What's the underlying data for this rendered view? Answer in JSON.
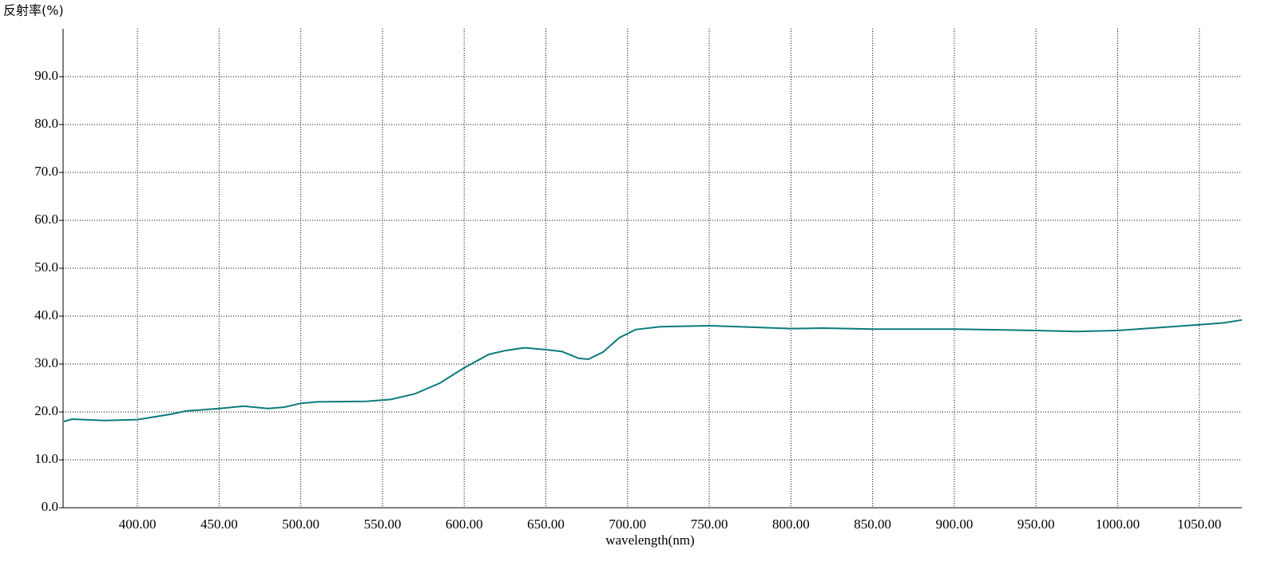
{
  "chart_data": {
    "type": "line",
    "y_label": "反射率(%)",
    "x_label": "wavelength(nm)",
    "xlim": [
      354.5,
      1076
    ],
    "ylim": [
      0,
      100
    ],
    "xticks": [
      {
        "value": 400,
        "label": "400.00"
      },
      {
        "value": 450,
        "label": "450.00"
      },
      {
        "value": 500,
        "label": "500.00"
      },
      {
        "value": 550,
        "label": "550.00"
      },
      {
        "value": 600,
        "label": "600.00"
      },
      {
        "value": 650,
        "label": "650.00"
      },
      {
        "value": 700,
        "label": "700.00"
      },
      {
        "value": 750,
        "label": "750.00"
      },
      {
        "value": 800,
        "label": "800.00"
      },
      {
        "value": 850,
        "label": "850.00"
      },
      {
        "value": 900,
        "label": "900.00"
      },
      {
        "value": 950,
        "label": "950.00"
      },
      {
        "value": 1000,
        "label": "1000.00"
      },
      {
        "value": 1050,
        "label": "1050.00"
      }
    ],
    "yticks": [
      {
        "value": 0,
        "label": "0.0"
      },
      {
        "value": 10,
        "label": "10.0"
      },
      {
        "value": 20,
        "label": "20.0"
      },
      {
        "value": 30,
        "label": "30.0"
      },
      {
        "value": 40,
        "label": "40.0"
      },
      {
        "value": 50,
        "label": "50.0"
      },
      {
        "value": 60,
        "label": "60.0"
      },
      {
        "value": 70,
        "label": "70.0"
      },
      {
        "value": 80,
        "label": "80.0"
      },
      {
        "value": 90,
        "label": "90.0"
      }
    ],
    "grid": true,
    "color": "#0b7b7b",
    "x": [
      355,
      360,
      380,
      400,
      420,
      430,
      450,
      465,
      480,
      490,
      500,
      510,
      540,
      555,
      570,
      585,
      600,
      615,
      625,
      637,
      650,
      660,
      670,
      676,
      685,
      695,
      705,
      720,
      750,
      775,
      800,
      820,
      850,
      900,
      950,
      975,
      1000,
      1025,
      1050,
      1065,
      1076
    ],
    "values": [
      18.0,
      18.5,
      18.2,
      18.4,
      19.5,
      20.2,
      20.7,
      21.2,
      20.7,
      21.0,
      21.8,
      22.1,
      22.2,
      22.6,
      23.8,
      26.0,
      29.2,
      32.0,
      32.8,
      33.4,
      33.0,
      32.6,
      31.2,
      31.0,
      32.5,
      35.5,
      37.2,
      37.8,
      38.0,
      37.7,
      37.4,
      37.5,
      37.3,
      37.3,
      37.0,
      36.8,
      37.0,
      37.6,
      38.2,
      38.6,
      39.2
    ]
  }
}
